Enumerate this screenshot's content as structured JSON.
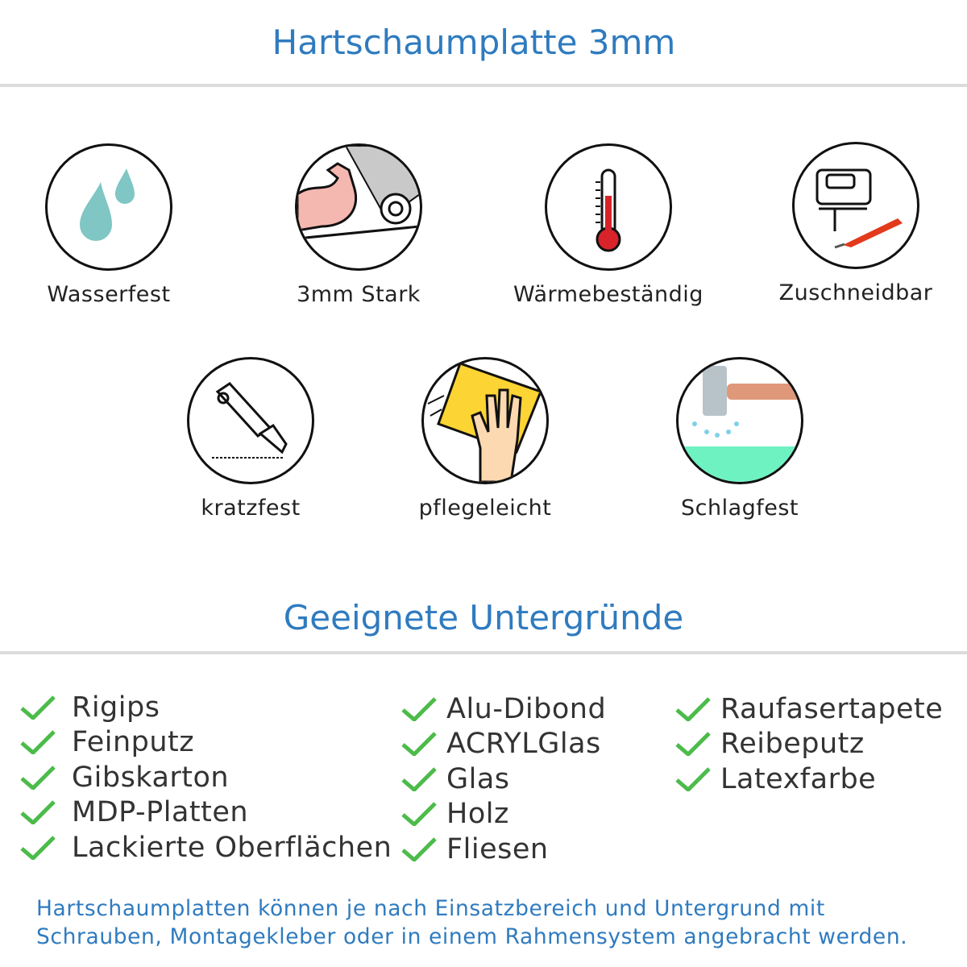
{
  "header": {
    "title": "Hartschaumplatte 3mm"
  },
  "features": [
    {
      "label": "Wasserfest",
      "icon": "water-drops-icon"
    },
    {
      "label": "3mm Stark",
      "icon": "strong-arm-icon"
    },
    {
      "label": "Wärmebeständig",
      "icon": "thermometer-icon"
    },
    {
      "label": "Zuschneidbar",
      "icon": "jigsaw-cutter-icon"
    },
    {
      "label": "kratzfest",
      "icon": "cutter-knife-icon"
    },
    {
      "label": "pflegeleicht",
      "icon": "hand-sponge-icon"
    },
    {
      "label": "Schlagfest",
      "icon": "hammer-impact-icon"
    }
  ],
  "surfaces": {
    "title": "Geeignete Untergründe",
    "check_color": "#4cbb4a",
    "columns": [
      [
        "Rigips",
        "Feinputz",
        "Gibskarton",
        "MDP-Platten",
        "Lackierte Oberflächen"
      ],
      [
        "Alu-Dibond",
        "ACRYLGlas",
        "Glas",
        "Holz",
        "Fliesen"
      ],
      [
        "Raufasertapete",
        "Reibeputz",
        "Latexfarbe"
      ]
    ]
  },
  "footer": {
    "line1": "Hartschaumplatten können je nach Einsatzbereich und Untergrund mit",
    "line2": "Schrauben, Montagekleber oder in einem Rahmensystem angebracht werden."
  },
  "colors": {
    "accent": "#2f7bbf",
    "text": "#333333",
    "rule": "#dcdcdc"
  }
}
